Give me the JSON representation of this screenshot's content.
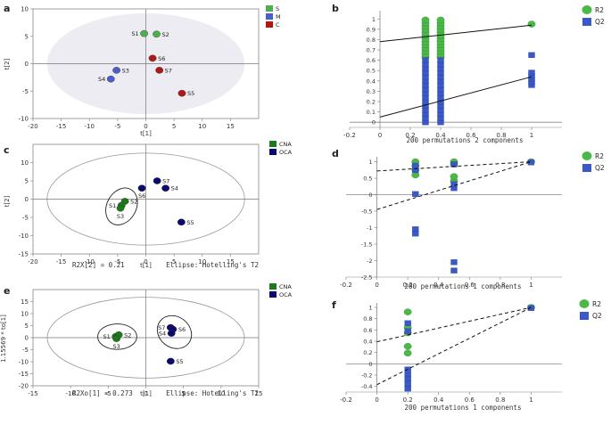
{
  "colors": {
    "green": "#4caf50",
    "light_green": "#5cc45c",
    "dark_green": "#1b7a1b",
    "red": "#b01818",
    "blue": "#4a5fc8",
    "navy": "#0a0a6e",
    "r2_green": "#4cb848",
    "q2_blue": "#3a58c8",
    "axis": "#888888",
    "ellipse_fill": "#ececf2"
  },
  "chart_data": [
    {
      "id": "a",
      "type": "scatter",
      "panel_label": "a",
      "xlabel": "t[1]",
      "ylabel": "t[2]",
      "xlim": [
        -20,
        20
      ],
      "ylim": [
        -10,
        10
      ],
      "xticks": [
        -20,
        -15,
        -10,
        -5,
        0,
        5,
        10,
        15
      ],
      "yticks": [
        -10,
        -5,
        0,
        5,
        10
      ],
      "ellipse": {
        "cx": 0,
        "cy": 0,
        "rx": 17.5,
        "ry": 9.2,
        "filled": true
      },
      "legend": [
        {
          "label": "S",
          "color": "#4caf50"
        },
        {
          "label": "M",
          "color": "#4a5fc8"
        },
        {
          "label": "C",
          "color": "#b01818"
        }
      ],
      "points": [
        {
          "label": "S1",
          "x": -0.3,
          "y": 5.5,
          "color": "#4caf50",
          "label_side": "left"
        },
        {
          "label": "S2",
          "x": 1.9,
          "y": 5.4,
          "color": "#4caf50",
          "label_side": "right"
        },
        {
          "label": "S3",
          "x": -5.2,
          "y": -1.2,
          "color": "#4a5fc8",
          "label_side": "right"
        },
        {
          "label": "S4",
          "x": -6.2,
          "y": -2.8,
          "color": "#4a5fc8",
          "label_side": "left"
        },
        {
          "label": "S6",
          "x": 1.2,
          "y": 1.0,
          "color": "#b01818",
          "label_side": "right"
        },
        {
          "label": "S7",
          "x": 2.4,
          "y": -1.2,
          "color": "#b01818",
          "label_side": "right"
        },
        {
          "label": "S5",
          "x": 6.4,
          "y": -5.4,
          "color": "#b01818",
          "label_side": "right"
        }
      ]
    },
    {
      "id": "b",
      "type": "scatter",
      "panel_label": "b",
      "xlabel": "200 permutations 2 components",
      "xlim": [
        -0.2,
        1.2
      ],
      "ylim": [
        -0.05,
        1.08
      ],
      "xticks": [
        -0.2,
        0,
        0.2,
        0.4,
        0.6,
        0.8,
        1
      ],
      "yticks": [
        0,
        0.1,
        0.2,
        0.3,
        0.4,
        0.5,
        0.6,
        0.7,
        0.8,
        0.9,
        1
      ],
      "legend": [
        {
          "label": "R2",
          "color": "#4cb848",
          "shape": "circle"
        },
        {
          "label": "Q2",
          "color": "#3a58c8",
          "shape": "square"
        }
      ],
      "lines": [
        {
          "name": "R2",
          "x": [
            0,
            1
          ],
          "y": [
            0.78,
            0.94
          ],
          "dashed": false
        },
        {
          "name": "Q2",
          "x": [
            0,
            1
          ],
          "y": [
            0.05,
            0.44
          ],
          "dashed": false
        }
      ],
      "series": [
        {
          "name": "R2",
          "color": "#4cb848",
          "shape": "circle",
          "points": [
            [
              0.3,
              0.63
            ],
            [
              0.3,
              0.66
            ],
            [
              0.3,
              0.69
            ],
            [
              0.3,
              0.72
            ],
            [
              0.3,
              0.75
            ],
            [
              0.3,
              0.78
            ],
            [
              0.3,
              0.81
            ],
            [
              0.3,
              0.84
            ],
            [
              0.3,
              0.87
            ],
            [
              0.3,
              0.9
            ],
            [
              0.3,
              0.93
            ],
            [
              0.3,
              0.96
            ],
            [
              0.3,
              0.99
            ],
            [
              0.4,
              0.63
            ],
            [
              0.4,
              0.66
            ],
            [
              0.4,
              0.69
            ],
            [
              0.4,
              0.72
            ],
            [
              0.4,
              0.75
            ],
            [
              0.4,
              0.78
            ],
            [
              0.4,
              0.81
            ],
            [
              0.4,
              0.84
            ],
            [
              0.4,
              0.87
            ],
            [
              0.4,
              0.9
            ],
            [
              0.4,
              0.93
            ],
            [
              0.4,
              0.96
            ],
            [
              0.4,
              0.99
            ],
            [
              1,
              0.95
            ]
          ]
        },
        {
          "name": "Q2",
          "color": "#3a58c8",
          "shape": "square",
          "points": [
            [
              0.3,
              0.0
            ],
            [
              0.3,
              0.04
            ],
            [
              0.3,
              0.08
            ],
            [
              0.3,
              0.12
            ],
            [
              0.3,
              0.16
            ],
            [
              0.3,
              0.2
            ],
            [
              0.3,
              0.24
            ],
            [
              0.3,
              0.28
            ],
            [
              0.3,
              0.32
            ],
            [
              0.3,
              0.36
            ],
            [
              0.3,
              0.4
            ],
            [
              0.3,
              0.44
            ],
            [
              0.3,
              0.48
            ],
            [
              0.3,
              0.52
            ],
            [
              0.3,
              0.56
            ],
            [
              0.3,
              0.6
            ],
            [
              0.4,
              0.0
            ],
            [
              0.4,
              0.04
            ],
            [
              0.4,
              0.08
            ],
            [
              0.4,
              0.12
            ],
            [
              0.4,
              0.16
            ],
            [
              0.4,
              0.2
            ],
            [
              0.4,
              0.24
            ],
            [
              0.4,
              0.28
            ],
            [
              0.4,
              0.32
            ],
            [
              0.4,
              0.36
            ],
            [
              0.4,
              0.4
            ],
            [
              0.4,
              0.44
            ],
            [
              0.4,
              0.48
            ],
            [
              0.4,
              0.52
            ],
            [
              0.4,
              0.56
            ],
            [
              0.4,
              0.6
            ],
            [
              1,
              0.36
            ],
            [
              1,
              0.39
            ],
            [
              1,
              0.42
            ],
            [
              1,
              0.45
            ],
            [
              1,
              0.48
            ],
            [
              1,
              0.65
            ]
          ]
        }
      ]
    },
    {
      "id": "c",
      "type": "scatter",
      "panel_label": "c",
      "xlabel": "t[1]",
      "ylabel": "t[2]",
      "xlim": [
        -20,
        20
      ],
      "ylim": [
        -15,
        15
      ],
      "xticks": [
        -20,
        -15,
        -10,
        -5,
        0,
        5,
        10,
        15
      ],
      "yticks": [
        -15,
        -10,
        -5,
        0,
        5,
        10
      ],
      "ellipse": {
        "cx": 0,
        "cy": 0,
        "rx": 17.5,
        "ry": 12.6,
        "filled": false
      },
      "group_ellipses": [
        {
          "cx": -4.3,
          "cy": -2.0,
          "rx": 2.6,
          "ry": 5.3,
          "angle": 28
        }
      ],
      "footer_left": "R2X[2] = 0.21",
      "footer_right": "Ellipse: Hotelling's T2",
      "legend": [
        {
          "label": "CNA",
          "color": "#1b7a1b"
        },
        {
          "label": "OCA",
          "color": "#0a0a6e"
        }
      ],
      "points": [
        {
          "label": "S2",
          "x": -3.7,
          "y": -0.6,
          "color": "#1b7a1b",
          "label_side": "right"
        },
        {
          "label": "S1",
          "x": -4.3,
          "y": -1.7,
          "color": "#1b7a1b",
          "label_side": "left"
        },
        {
          "label": "S3",
          "x": -4.5,
          "y": -2.5,
          "color": "#1b7a1b",
          "label_side": "below"
        },
        {
          "label": "S7",
          "x": 2.0,
          "y": 5.0,
          "color": "#0a0a6e",
          "label_side": "right"
        },
        {
          "label": "S6",
          "x": -0.7,
          "y": 3.0,
          "color": "#0a0a6e",
          "label_side": "below"
        },
        {
          "label": "S4",
          "x": 3.5,
          "y": 3.0,
          "color": "#0a0a6e",
          "label_side": "right"
        },
        {
          "label": "S5",
          "x": 6.3,
          "y": -6.3,
          "color": "#0a0a6e",
          "label_side": "right"
        }
      ]
    },
    {
      "id": "d",
      "type": "scatter",
      "panel_label": "d",
      "xlabel": "200 permutations 1 components",
      "xlim": [
        -0.2,
        1.2
      ],
      "ylim": [
        -2.5,
        1.15
      ],
      "xticks": [
        -0.2,
        0,
        0.2,
        0.4,
        0.6,
        0.8,
        1
      ],
      "yticks": [
        -2.5,
        -2,
        -1.5,
        -1,
        -0.5,
        0,
        0.5,
        1
      ],
      "legend": [
        {
          "label": "R2",
          "color": "#4cb848",
          "shape": "circle"
        },
        {
          "label": "Q2",
          "color": "#3a58c8",
          "shape": "square"
        }
      ],
      "lines": [
        {
          "name": "R2",
          "x": [
            0,
            1
          ],
          "y": [
            0.72,
            1.0
          ],
          "dashed": true
        },
        {
          "name": "Q2",
          "x": [
            0,
            1
          ],
          "y": [
            -0.45,
            1.0
          ],
          "dashed": true
        }
      ],
      "series": [
        {
          "name": "R2",
          "color": "#4cb848",
          "shape": "circle",
          "points": [
            [
              0.25,
              0.6
            ],
            [
              0.25,
              0.75
            ],
            [
              0.25,
              0.88
            ],
            [
              0.25,
              1.0
            ],
            [
              0.5,
              0.42
            ],
            [
              0.5,
              0.55
            ],
            [
              0.5,
              0.93
            ],
            [
              0.5,
              1.0
            ],
            [
              1,
              1.0
            ]
          ]
        },
        {
          "name": "Q2",
          "color": "#3a58c8",
          "shape": "square",
          "points": [
            [
              0.25,
              -1.05
            ],
            [
              0.25,
              -1.18
            ],
            [
              0.25,
              0.02
            ],
            [
              0.25,
              0.75
            ],
            [
              0.25,
              0.88
            ],
            [
              0.5,
              -2.05
            ],
            [
              0.5,
              -2.3
            ],
            [
              0.5,
              0.2
            ],
            [
              0.5,
              0.32
            ],
            [
              0.5,
              0.92
            ],
            [
              1,
              0.98
            ]
          ]
        }
      ]
    },
    {
      "id": "e",
      "type": "scatter",
      "panel_label": "e",
      "xlabel": "t[1]",
      "ylabel": "1.15569 * to[1]",
      "xlim": [
        -15,
        15
      ],
      "ylim": [
        -20,
        20
      ],
      "xticks": [
        -15,
        -10,
        -5,
        0,
        5,
        10,
        15
      ],
      "yticks": [
        -20,
        -15,
        -10,
        -5,
        0,
        5,
        10,
        15
      ],
      "ellipse": {
        "cx": 0,
        "cy": 0,
        "rx": 13.1,
        "ry": 16.8,
        "filled": false
      },
      "group_ellipses": [
        {
          "cx": -3.8,
          "cy": 0.4,
          "rx": 2.6,
          "ry": 5.3,
          "angle": 0
        },
        {
          "cx": 3.8,
          "cy": 2.3,
          "rx": 2.4,
          "ry": 6.4,
          "angle": 38
        }
      ],
      "footer_left": "R2Xo[1] = 0.273",
      "footer_right": "Ellipse: Hotelling's T2",
      "legend": [
        {
          "label": "CNA",
          "color": "#1b7a1b"
        },
        {
          "label": "OCA",
          "color": "#0a0a6e"
        }
      ],
      "points": [
        {
          "label": "S1",
          "x": -4.0,
          "y": 0.5,
          "color": "#1b7a1b",
          "label_side": "left"
        },
        {
          "label": "S2",
          "x": -3.6,
          "y": 1.2,
          "color": "#1b7a1b",
          "label_side": "right"
        },
        {
          "label": "S3",
          "x": -3.9,
          "y": -0.4,
          "color": "#1b7a1b",
          "label_side": "below"
        },
        {
          "label": "S7",
          "x": 3.3,
          "y": 4.2,
          "color": "#0a0a6e",
          "label_side": "left"
        },
        {
          "label": "S6",
          "x": 3.6,
          "y": 3.5,
          "color": "#0a0a6e",
          "label_side": "right"
        },
        {
          "label": "S4",
          "x": 3.4,
          "y": 1.8,
          "color": "#0a0a6e",
          "label_side": "left"
        },
        {
          "label": "S5",
          "x": 3.3,
          "y": -9.8,
          "color": "#0a0a6e",
          "label_side": "right"
        }
      ]
    },
    {
      "id": "f",
      "type": "scatter",
      "panel_label": "f",
      "xlabel": "200 permutations 1 components",
      "xlim": [
        -0.2,
        1.2
      ],
      "ylim": [
        -0.5,
        1.08
      ],
      "xticks": [
        -0.2,
        0,
        0.2,
        0.4,
        0.6,
        0.8,
        1
      ],
      "yticks": [
        -0.4,
        -0.2,
        0,
        0.2,
        0.4,
        0.6,
        0.8,
        1
      ],
      "legend": [
        {
          "label": "R2",
          "color": "#4cb848",
          "shape": "circle"
        },
        {
          "label": "Q2",
          "color": "#3a58c8",
          "shape": "square"
        }
      ],
      "lines": [
        {
          "name": "R2",
          "x": [
            0,
            1
          ],
          "y": [
            0.39,
            1.0
          ],
          "dashed": true
        },
        {
          "name": "Q2",
          "x": [
            0,
            1
          ],
          "y": [
            -0.37,
            1.0
          ],
          "dashed": true
        }
      ],
      "series": [
        {
          "name": "R2",
          "color": "#4cb848",
          "shape": "circle",
          "points": [
            [
              0.2,
              0.92
            ],
            [
              0.2,
              0.64
            ],
            [
              0.2,
              0.55
            ],
            [
              0.2,
              0.31
            ],
            [
              0.2,
              0.19
            ],
            [
              1,
              1.0
            ]
          ]
        },
        {
          "name": "Q2",
          "color": "#3a58c8",
          "shape": "square",
          "points": [
            [
              0.2,
              0.72
            ],
            [
              0.2,
              0.58
            ],
            [
              0.2,
              -0.1
            ],
            [
              0.2,
              -0.2
            ],
            [
              0.2,
              -0.27
            ],
            [
              0.2,
              -0.35
            ],
            [
              0.2,
              -0.44
            ],
            [
              1,
              0.99
            ]
          ]
        }
      ]
    }
  ]
}
